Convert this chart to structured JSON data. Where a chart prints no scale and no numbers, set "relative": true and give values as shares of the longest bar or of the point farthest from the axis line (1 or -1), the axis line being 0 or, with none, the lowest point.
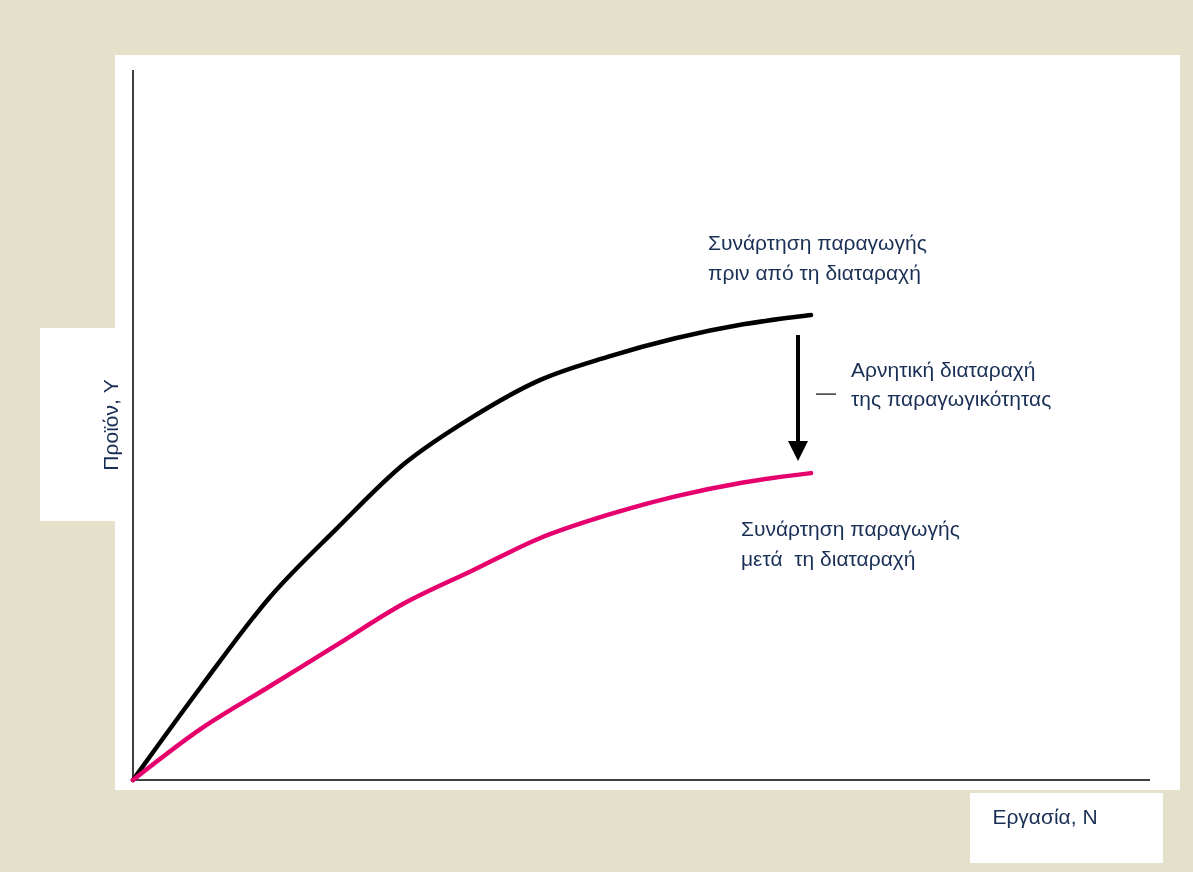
{
  "chart_data": {
    "type": "line",
    "relative": true,
    "xlabel": "Εργασία, Ν",
    "ylabel": "Προϊόν, Y",
    "legend": false,
    "grid": false,
    "categories": [
      null,
      null,
      null,
      null,
      null,
      null,
      null,
      null,
      null,
      null,
      null,
      null,
      null,
      null,
      null,
      null
    ],
    "series": [
      {
        "name": "Συνάρτηση παραγωγής πριν από τη διαταραχή",
        "color": "#000000",
        "values": [
          0,
          0.2,
          0.39,
          0.54,
          0.68,
          0.78,
          0.86,
          0.91,
          0.95,
          0.98,
          1,
          null,
          null,
          null,
          null,
          null
        ]
      },
      {
        "name": "Συνάρτηση παραγωγής μετά  τη διαταραχή",
        "color": "#e6006e",
        "values": [
          0,
          0.11,
          0.2,
          0.29,
          0.38,
          0.45,
          0.52,
          0.57,
          0.61,
          0.64,
          0.66,
          null,
          null,
          null,
          null,
          null
        ]
      }
    ],
    "annotations": [
      "Αρνητική διαταραχή\nτης παραγωγικότητας"
    ]
  }
}
